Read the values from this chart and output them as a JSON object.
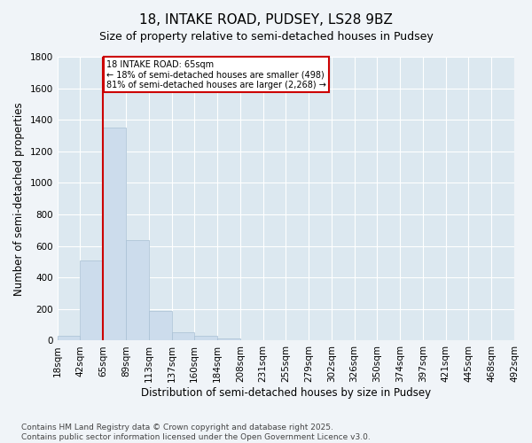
{
  "title_line1": "18, INTAKE ROAD, PUDSEY, LS28 9BZ",
  "title_line2": "Size of property relative to semi-detached houses in Pudsey",
  "xlabel": "Distribution of semi-detached houses by size in Pudsey",
  "ylabel": "Number of semi-detached properties",
  "bins": [
    "18sqm",
    "42sqm",
    "65sqm",
    "89sqm",
    "113sqm",
    "137sqm",
    "160sqm",
    "184sqm",
    "208sqm",
    "231sqm",
    "255sqm",
    "279sqm",
    "302sqm",
    "326sqm",
    "350sqm",
    "374sqm",
    "397sqm",
    "421sqm",
    "445sqm",
    "468sqm",
    "492sqm"
  ],
  "values": [
    30,
    510,
    1350,
    640,
    190,
    55,
    30,
    15,
    5,
    0,
    0,
    0,
    0,
    0,
    0,
    0,
    0,
    0,
    0,
    0
  ],
  "bar_color": "#ccdcec",
  "bar_edge_color": "#a8c0d4",
  "vline_color": "#cc0000",
  "annotation_text": "18 INTAKE ROAD: 65sqm\n← 18% of semi-detached houses are smaller (498)\n81% of semi-detached houses are larger (2,268) →",
  "annotation_box_color": "#ffffff",
  "annotation_border_color": "#cc0000",
  "ylim": [
    0,
    1800
  ],
  "yticks": [
    0,
    200,
    400,
    600,
    800,
    1000,
    1200,
    1400,
    1600,
    1800
  ],
  "fig_background": "#f0f4f8",
  "plot_background": "#dce8f0",
  "footer_text": "Contains HM Land Registry data © Crown copyright and database right 2025.\nContains public sector information licensed under the Open Government Licence v3.0.",
  "title_fontsize": 11,
  "subtitle_fontsize": 9,
  "axis_label_fontsize": 8.5,
  "tick_fontsize": 7.5,
  "footer_fontsize": 6.5
}
